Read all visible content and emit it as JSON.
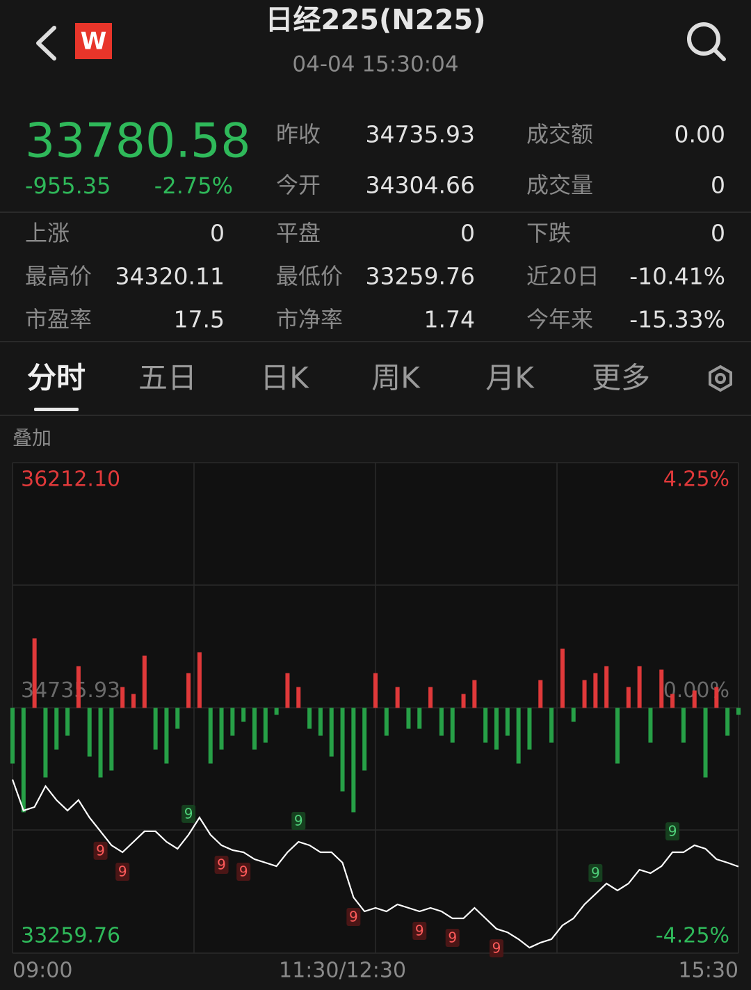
{
  "header": {
    "logo": "W",
    "title": "日经225(N225)",
    "time": "04-04 15:30:04"
  },
  "quote": {
    "price": "33780.58",
    "change": "-955.35",
    "change_pct": "-2.75%"
  },
  "stats_top": [
    [
      {
        "label": "昨收",
        "value": "34735.93"
      },
      {
        "label": "成交额",
        "value": "0.00"
      }
    ],
    [
      {
        "label": "今开",
        "value": "34304.66"
      },
      {
        "label": "成交量",
        "value": "0"
      }
    ]
  ],
  "stats": [
    [
      {
        "label": "上涨",
        "value": "0"
      },
      {
        "label": "平盘",
        "value": "0"
      },
      {
        "label": "下跌",
        "value": "0"
      }
    ],
    [
      {
        "label": "最高价",
        "value": "34320.11"
      },
      {
        "label": "最低价",
        "value": "33259.76"
      },
      {
        "label": "近20日",
        "value": "-10.41%"
      }
    ],
    [
      {
        "label": "市盈率",
        "value": "17.5"
      },
      {
        "label": "市净率",
        "value": "1.74"
      },
      {
        "label": "今年来",
        "value": "-15.33%"
      }
    ]
  ],
  "tabs": [
    "分时",
    "五日",
    "日K",
    "周K",
    "月K",
    "更多"
  ],
  "active_tab": 0,
  "overlay_label": "叠加",
  "chart_data": {
    "type": "line",
    "color": "#ffffff",
    "xlim": [
      0,
      330
    ],
    "xticks": [
      {
        "value": 0,
        "label": "09:00"
      },
      {
        "value": 150,
        "label": "11:30/12:30"
      },
      {
        "value": 330,
        "label": "15:30"
      }
    ],
    "ylim": [
      33259.76,
      36212.1
    ],
    "yticks": [
      33259.76,
      34735.93,
      {
        "value": 36212.1,
        "label": "36212.10"
      }
    ],
    "y2lim": [
      -4.25,
      4.25
    ],
    "y2ticks": [
      {
        "value": -4.25,
        "label": "-4.25%"
      },
      {
        "value": 0,
        "label": "0.00%"
      },
      {
        "value": 4.25,
        "label": "4.25%"
      }
    ],
    "x": [
      0,
      5,
      10,
      15,
      20,
      25,
      30,
      35,
      40,
      45,
      50,
      55,
      60,
      65,
      70,
      75,
      80,
      85,
      90,
      95,
      100,
      105,
      110,
      115,
      120,
      125,
      130,
      135,
      140,
      145,
      150,
      155,
      160,
      165,
      170,
      175,
      180,
      185,
      190,
      195,
      200,
      205,
      210,
      215,
      220,
      225,
      230,
      235,
      240,
      245,
      250,
      255,
      260,
      265,
      270,
      275,
      280,
      285,
      290,
      295,
      300,
      305,
      310,
      315,
      320,
      325,
      330
    ],
    "values": [
      34304.66,
      34118,
      34139,
      34265,
      34181,
      34118,
      34181,
      34076,
      33993,
      33909,
      33867,
      33930,
      33993,
      33993,
      33930,
      33888,
      33972,
      34076,
      33972,
      33909,
      33880,
      33867,
      33825,
      33804,
      33783,
      33867,
      33930,
      33909,
      33867,
      33867,
      33804,
      33595,
      33511,
      33532,
      33511,
      33553,
      33532,
      33511,
      33532,
      33511,
      33469,
      33469,
      33532,
      33469,
      33406,
      33385,
      33344,
      33293,
      33323,
      33344,
      33427,
      33469,
      33553,
      33616,
      33679,
      33637,
      33679,
      33762,
      33741,
      33783,
      33867,
      33867,
      33909,
      33888,
      33825,
      33804,
      33780.58
    ],
    "bars": {
      "up_color": "#e0393a",
      "down_color": "#27a047",
      "values": [
        -80,
        -150,
        100,
        -100,
        -60,
        -40,
        60,
        -70,
        -100,
        -90,
        30,
        20,
        75,
        -60,
        -80,
        -30,
        50,
        80,
        -80,
        -60,
        -40,
        -20,
        -60,
        -50,
        -10,
        50,
        30,
        -30,
        -40,
        -70,
        -120,
        -150,
        -90,
        50,
        -40,
        30,
        -30,
        -30,
        30,
        -40,
        -50,
        20,
        40,
        -50,
        -60,
        -40,
        -80,
        -60,
        40,
        -50,
        85,
        -20,
        40,
        50,
        60,
        -80,
        30,
        60,
        -50,
        55,
        20,
        -50,
        25,
        -100,
        30,
        -40,
        -10
      ]
    },
    "markers": [
      {
        "label": "9",
        "index": 8,
        "color": "red"
      },
      {
        "label": "9",
        "index": 10,
        "color": "red"
      },
      {
        "label": "9",
        "index": 16,
        "color": "green"
      },
      {
        "label": "9",
        "index": 19,
        "color": "red"
      },
      {
        "label": "9",
        "index": 21,
        "color": "red"
      },
      {
        "label": "9",
        "index": 26,
        "color": "green"
      },
      {
        "label": "9",
        "index": 31,
        "color": "red"
      },
      {
        "label": "9",
        "index": 37,
        "color": "red"
      },
      {
        "label": "9",
        "index": 40,
        "color": "red"
      },
      {
        "label": "9",
        "index": 44,
        "color": "red"
      },
      {
        "label": "9",
        "index": 53,
        "color": "green"
      },
      {
        "label": "9",
        "index": 60,
        "color": "green"
      }
    ]
  }
}
